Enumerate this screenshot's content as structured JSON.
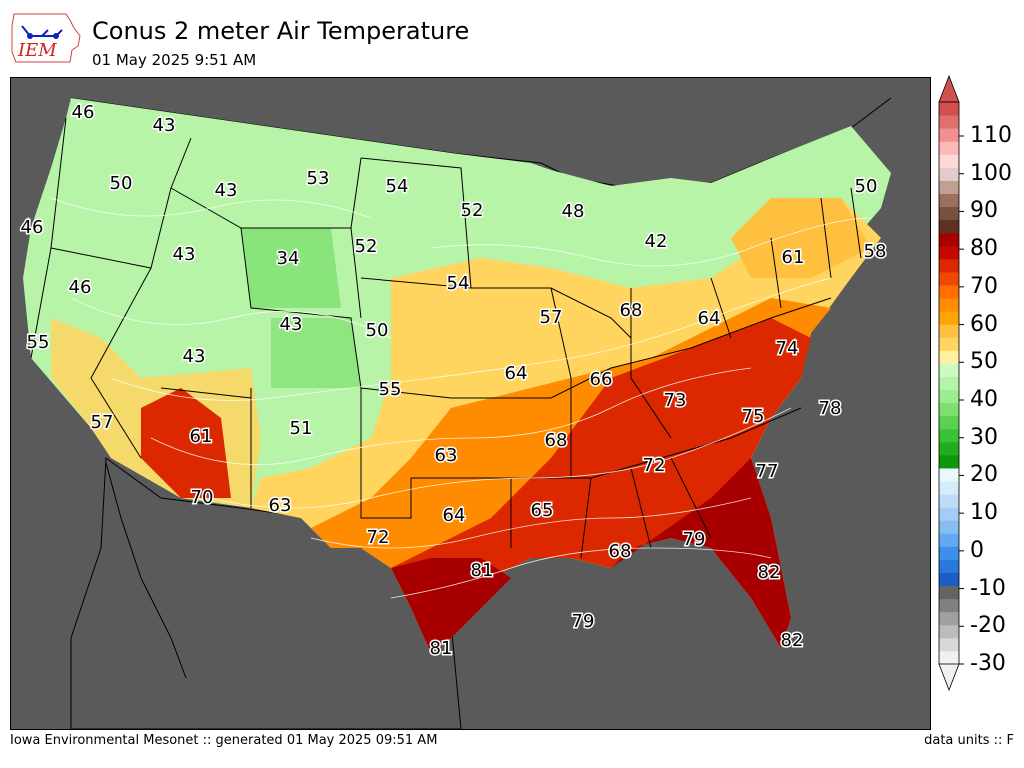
{
  "header": {
    "logo_text": "IEM",
    "title": "Conus 2 meter Air Temperature",
    "subtitle": "01 May 2025 9:51 AM"
  },
  "footer": {
    "left": "Iowa Environmental Mesonet :: generated 01 May 2025 09:51 AM",
    "right": "data units :: F"
  },
  "colorbar": {
    "tick_labels": [
      "110",
      "100",
      "90",
      "80",
      "70",
      "60",
      "50",
      "40",
      "30",
      "20",
      "10",
      "0",
      "-10",
      "-20",
      "-30"
    ],
    "min": -30,
    "max": 120,
    "colors": [
      "#f0f0f0",
      "#d8d8d8",
      "#bcbcbc",
      "#a0a0a0",
      "#808080",
      "#646464",
      "#1c5ec6",
      "#2a78dc",
      "#3c90ec",
      "#62a8f2",
      "#86bcf4",
      "#a4ccf6",
      "#bedcf8",
      "#d6ecfa",
      "#e8f8fc",
      "#10960c",
      "#22ad1e",
      "#3cc034",
      "#5cd050",
      "#7ee070",
      "#9cec90",
      "#b4f4a8",
      "#ccfac0",
      "#fff0a0",
      "#ffd560",
      "#ffc040",
      "#ffa500",
      "#ff8c00",
      "#ff6e00",
      "#f04800",
      "#dc2800",
      "#c40a00",
      "#a80000",
      "#603020",
      "#785040",
      "#9c7060",
      "#c0a090",
      "#e0cccc",
      "#ffd8d8",
      "#ffb8b8",
      "#f09090",
      "#e07070",
      "#d05050"
    ]
  },
  "map": {
    "labels": [
      {
        "text": "46"
      },
      {
        "text": "43"
      },
      {
        "text": "50"
      },
      {
        "text": "43"
      },
      {
        "text": "53"
      },
      {
        "text": "54"
      },
      {
        "text": "46"
      },
      {
        "text": "43"
      },
      {
        "text": "34"
      },
      {
        "text": "52"
      },
      {
        "text": "52"
      },
      {
        "text": "48"
      },
      {
        "text": "42"
      },
      {
        "text": "50"
      },
      {
        "text": "61"
      },
      {
        "text": "58"
      },
      {
        "text": "46"
      },
      {
        "text": "54"
      },
      {
        "text": "43"
      },
      {
        "text": "50"
      },
      {
        "text": "55"
      },
      {
        "text": "57"
      },
      {
        "text": "68"
      },
      {
        "text": "64"
      },
      {
        "text": "43"
      },
      {
        "text": "74"
      },
      {
        "text": "64"
      },
      {
        "text": "66"
      },
      {
        "text": "55"
      },
      {
        "text": "73"
      },
      {
        "text": "57"
      },
      {
        "text": "61"
      },
      {
        "text": "51"
      },
      {
        "text": "75"
      },
      {
        "text": "78"
      },
      {
        "text": "63"
      },
      {
        "text": "68"
      },
      {
        "text": "72"
      },
      {
        "text": "77"
      },
      {
        "text": "70"
      },
      {
        "text": "63"
      },
      {
        "text": "64"
      },
      {
        "text": "65"
      },
      {
        "text": "72"
      },
      {
        "text": "68"
      },
      {
        "text": "79"
      },
      {
        "text": "81"
      },
      {
        "text": "82"
      },
      {
        "text": "79"
      },
      {
        "text": "81"
      },
      {
        "text": "82"
      }
    ]
  }
}
